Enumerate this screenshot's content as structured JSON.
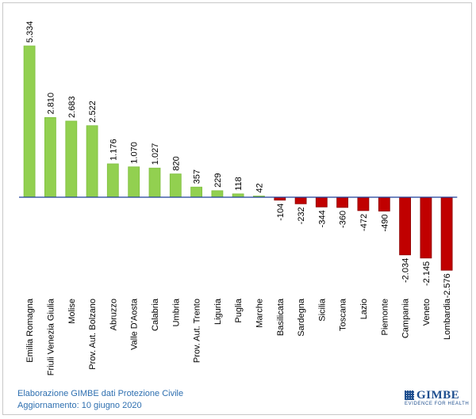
{
  "chart_data": {
    "type": "bar",
    "categories": [
      "Emilia Romagna",
      "Friuli Venezia Giulia",
      "Molise",
      "Prov. Aut. Bolzano",
      "Abruzzo",
      "Valle D'Aosta",
      "Calabria",
      "Umbria",
      "Prov. Aut. Trento",
      "Liguria",
      "Puglia",
      "Marche",
      "Basilicata",
      "Sardegna",
      "Sicilia",
      "Toscana",
      "Lazio",
      "Piemonte",
      "Campania",
      "Veneto",
      "Lombardia"
    ],
    "values": [
      5334,
      2810,
      2683,
      2522,
      1176,
      1070,
      1027,
      820,
      357,
      229,
      118,
      42,
      -104,
      -232,
      -344,
      -360,
      -472,
      -490,
      -2034,
      -2145,
      -2576
    ],
    "value_labels": [
      "5.334",
      "2.810",
      "2.683",
      "2.522",
      "1.176",
      "1.070",
      "1.027",
      "820",
      "357",
      "229",
      "118",
      "42",
      "-104",
      "-232",
      "-344",
      "-360",
      "-472",
      "-490",
      "-2.034",
      "-2.145",
      "-2.576"
    ],
    "colors": {
      "positive_fill": "#92d050",
      "positive_edge": "#7fbf3f",
      "negative_fill": "#c00000",
      "negative_edge": "#8b0000",
      "baseline": "#1f3f99"
    },
    "grid": false,
    "legend": "none"
  },
  "footer": {
    "line1": "Elaborazione GIMBE dati Protezione Civile",
    "line2": "Aggiornamento: 10 giugno 2020"
  },
  "logo": {
    "name": "GIMBE",
    "tagline": "EVIDENCE FOR HEALTH"
  }
}
